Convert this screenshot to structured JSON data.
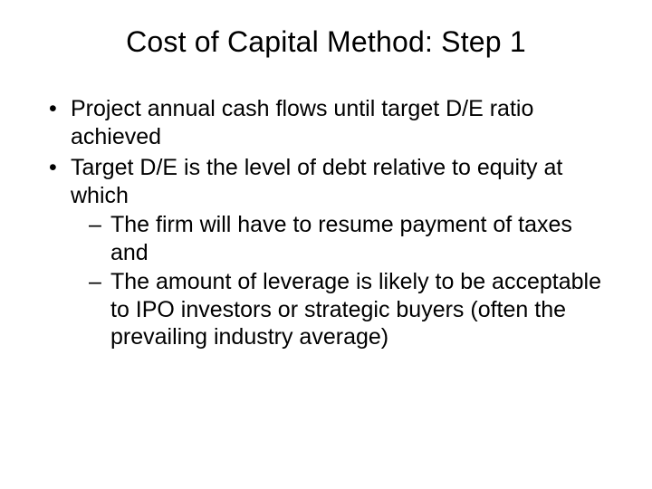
{
  "slide": {
    "title": "Cost of Capital Method: Step 1",
    "bullets": [
      {
        "text": "Project annual cash flows until target D/E ratio achieved"
      },
      {
        "text": "Target D/E is the level of debt relative to equity at which",
        "sub": [
          "The firm will have to resume payment of taxes and",
          "The amount of leverage is likely to be acceptable to IPO investors or strategic buyers (often the prevailing industry average)"
        ]
      }
    ]
  },
  "style": {
    "background_color": "#ffffff",
    "text_color": "#000000",
    "title_fontsize": 32,
    "body_fontsize": 25,
    "font_family": "Arial"
  }
}
